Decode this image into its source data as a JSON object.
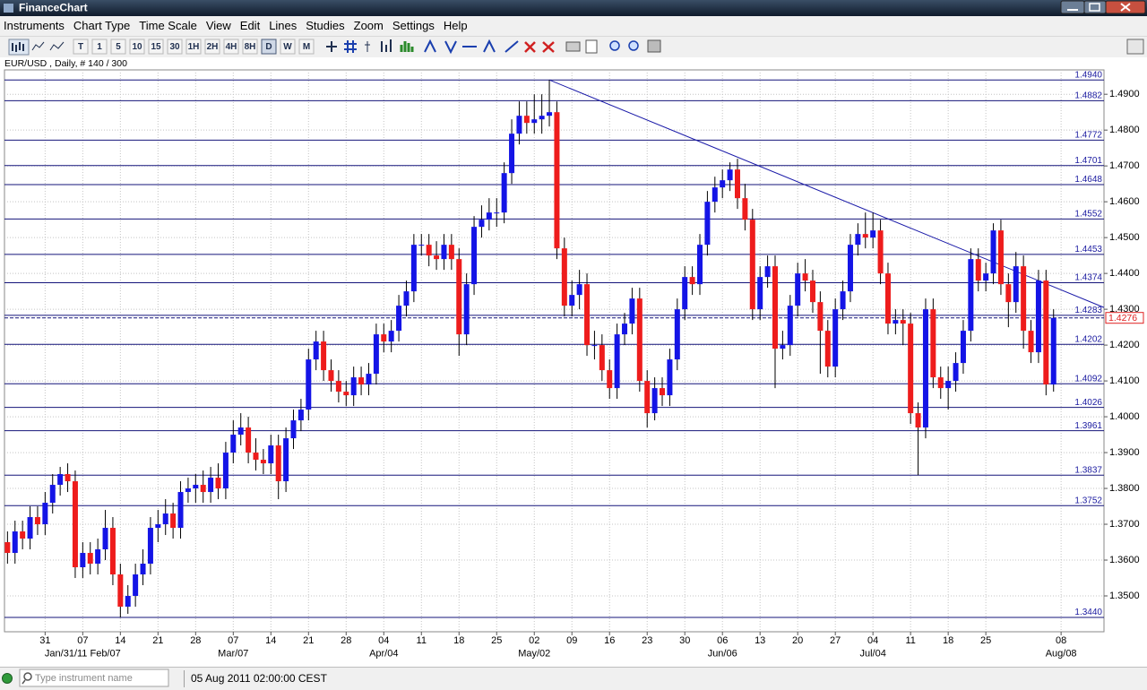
{
  "window": {
    "title": "FinanceChart"
  },
  "menu": [
    "Instruments",
    "Chart Type",
    "Time Scale",
    "View",
    "Edit",
    "Lines",
    "Studies",
    "Zoom",
    "Settings",
    "Help"
  ],
  "toolbar": [
    "T",
    "1",
    "5",
    "10",
    "15",
    "30",
    "1H",
    "2H",
    "4H",
    "8H",
    "D",
    "W",
    "M"
  ],
  "info": "EUR/USD , Daily, # 140 / 300",
  "status": {
    "search_placeholder": "Type instrument name",
    "datetime": "05 Aug 2011 02:00:00 CEST"
  },
  "chart_data": {
    "type": "candlestick",
    "up_color": "#1414e6",
    "down_color": "#ee1c1c",
    "open": [
      1.365,
      1.362,
      1.368,
      1.366,
      1.372,
      1.37,
      1.376,
      1.381,
      1.384,
      1.382,
      1.358,
      1.362,
      1.359,
      1.363,
      1.369,
      1.356,
      1.347,
      1.35,
      1.356,
      1.359,
      1.369,
      1.37,
      1.373,
      1.369,
      1.379,
      1.38,
      1.381,
      1.379,
      1.383,
      1.38,
      1.39,
      1.395,
      1.397,
      1.39,
      1.388,
      1.387,
      1.392,
      1.382,
      1.394,
      1.399,
      1.402,
      1.416,
      1.421,
      1.413,
      1.41,
      1.407,
      1.406,
      1.411,
      1.409,
      1.412,
      1.423,
      1.421,
      1.424,
      1.431,
      1.435,
      1.448,
      1.448,
      1.445,
      1.444,
      1.448,
      1.444,
      1.423,
      1.437,
      1.453,
      1.455,
      1.457,
      1.457,
      1.468,
      1.479,
      1.484,
      1.482,
      1.483,
      1.484,
      1.485,
      1.447,
      1.431,
      1.434,
      1.437,
      1.42,
      1.42,
      1.413,
      1.408,
      1.423,
      1.426,
      1.433,
      1.41,
      1.401,
      1.408,
      1.406,
      1.416,
      1.43,
      1.439,
      1.437,
      1.448,
      1.46,
      1.464,
      1.466,
      1.469,
      1.461,
      1.455,
      1.43,
      1.439,
      1.442,
      1.419,
      1.42,
      1.431,
      1.44,
      1.438,
      1.432,
      1.424,
      1.414,
      1.43,
      1.435,
      1.448,
      1.451,
      1.45,
      1.452,
      1.44,
      1.426,
      1.427,
      1.426,
      1.401,
      1.397,
      1.43,
      1.411,
      1.408,
      1.41,
      1.415,
      1.424,
      1.444,
      1.438,
      1.44,
      1.452,
      1.437,
      1.432,
      1.442,
      1.424,
      1.418,
      1.438,
      1.409
    ],
    "high": [
      1.368,
      1.371,
      1.371,
      1.375,
      1.375,
      1.379,
      1.384,
      1.386,
      1.387,
      1.385,
      1.365,
      1.365,
      1.366,
      1.374,
      1.372,
      1.359,
      1.353,
      1.359,
      1.363,
      1.372,
      1.374,
      1.377,
      1.376,
      1.382,
      1.383,
      1.384,
      1.385,
      1.386,
      1.387,
      1.393,
      1.399,
      1.401,
      1.4,
      1.394,
      1.391,
      1.395,
      1.395,
      1.397,
      1.402,
      1.405,
      1.419,
      1.424,
      1.424,
      1.416,
      1.413,
      1.41,
      1.414,
      1.414,
      1.415,
      1.426,
      1.426,
      1.427,
      1.434,
      1.438,
      1.451,
      1.451,
      1.451,
      1.449,
      1.451,
      1.451,
      1.447,
      1.44,
      1.456,
      1.459,
      1.461,
      1.461,
      1.471,
      1.483,
      1.488,
      1.488,
      1.49,
      1.49,
      1.494,
      1.488,
      1.45,
      1.438,
      1.441,
      1.44,
      1.424,
      1.423,
      1.416,
      1.426,
      1.429,
      1.436,
      1.436,
      1.413,
      1.411,
      1.411,
      1.419,
      1.433,
      1.442,
      1.442,
      1.451,
      1.463,
      1.467,
      1.469,
      1.471,
      1.472,
      1.465,
      1.458,
      1.442,
      1.445,
      1.445,
      1.424,
      1.434,
      1.443,
      1.444,
      1.441,
      1.435,
      1.427,
      1.433,
      1.438,
      1.451,
      1.454,
      1.457,
      1.457,
      1.455,
      1.443,
      1.43,
      1.43,
      1.429,
      1.404,
      1.433,
      1.433,
      1.414,
      1.414,
      1.418,
      1.427,
      1.447,
      1.447,
      1.443,
      1.454,
      1.455,
      1.44,
      1.446,
      1.445,
      1.427,
      1.441,
      1.441,
      1.43
    ],
    "low": [
      1.359,
      1.359,
      1.363,
      1.363,
      1.367,
      1.367,
      1.373,
      1.378,
      1.379,
      1.355,
      1.355,
      1.356,
      1.356,
      1.36,
      1.353,
      1.344,
      1.345,
      1.347,
      1.353,
      1.356,
      1.365,
      1.367,
      1.366,
      1.366,
      1.376,
      1.376,
      1.376,
      1.376,
      1.377,
      1.377,
      1.387,
      1.392,
      1.387,
      1.385,
      1.384,
      1.384,
      1.377,
      1.379,
      1.391,
      1.396,
      1.399,
      1.413,
      1.41,
      1.407,
      1.404,
      1.403,
      1.403,
      1.406,
      1.406,
      1.409,
      1.418,
      1.418,
      1.421,
      1.428,
      1.432,
      1.445,
      1.442,
      1.441,
      1.441,
      1.441,
      1.417,
      1.42,
      1.434,
      1.45,
      1.452,
      1.453,
      1.454,
      1.465,
      1.476,
      1.479,
      1.479,
      1.479,
      1.481,
      1.444,
      1.428,
      1.428,
      1.43,
      1.417,
      1.416,
      1.41,
      1.405,
      1.405,
      1.42,
      1.423,
      1.407,
      1.397,
      1.399,
      1.403,
      1.403,
      1.413,
      1.427,
      1.434,
      1.434,
      1.445,
      1.457,
      1.461,
      1.463,
      1.458,
      1.452,
      1.427,
      1.427,
      1.436,
      1.408,
      1.416,
      1.417,
      1.428,
      1.435,
      1.429,
      1.412,
      1.411,
      1.411,
      1.427,
      1.432,
      1.445,
      1.447,
      1.447,
      1.437,
      1.423,
      1.423,
      1.42,
      1.398,
      1.3837,
      1.394,
      1.408,
      1.405,
      1.402,
      1.407,
      1.412,
      1.421,
      1.435,
      1.435,
      1.437,
      1.434,
      1.425,
      1.429,
      1.419,
      1.415,
      1.415,
      1.406,
      1.407
    ],
    "close": [
      1.362,
      1.368,
      1.366,
      1.372,
      1.37,
      1.376,
      1.381,
      1.384,
      1.382,
      1.358,
      1.362,
      1.359,
      1.363,
      1.369,
      1.356,
      1.347,
      1.35,
      1.356,
      1.359,
      1.369,
      1.37,
      1.373,
      1.369,
      1.379,
      1.38,
      1.381,
      1.379,
      1.383,
      1.38,
      1.39,
      1.395,
      1.397,
      1.39,
      1.388,
      1.387,
      1.392,
      1.382,
      1.394,
      1.399,
      1.402,
      1.416,
      1.421,
      1.413,
      1.41,
      1.407,
      1.406,
      1.411,
      1.409,
      1.412,
      1.423,
      1.421,
      1.424,
      1.431,
      1.435,
      1.448,
      1.448,
      1.445,
      1.444,
      1.448,
      1.444,
      1.423,
      1.437,
      1.453,
      1.455,
      1.457,
      1.457,
      1.468,
      1.479,
      1.484,
      1.482,
      1.483,
      1.484,
      1.485,
      1.447,
      1.431,
      1.434,
      1.437,
      1.42,
      1.42,
      1.413,
      1.408,
      1.423,
      1.426,
      1.433,
      1.41,
      1.401,
      1.408,
      1.406,
      1.416,
      1.43,
      1.439,
      1.437,
      1.448,
      1.46,
      1.464,
      1.466,
      1.469,
      1.461,
      1.455,
      1.43,
      1.439,
      1.442,
      1.419,
      1.42,
      1.431,
      1.44,
      1.438,
      1.432,
      1.424,
      1.414,
      1.43,
      1.435,
      1.448,
      1.451,
      1.45,
      1.452,
      1.44,
      1.426,
      1.427,
      1.426,
      1.401,
      1.397,
      1.43,
      1.411,
      1.408,
      1.41,
      1.415,
      1.424,
      1.444,
      1.438,
      1.44,
      1.452,
      1.437,
      1.432,
      1.442,
      1.424,
      1.418,
      1.438,
      1.409,
      1.4276
    ],
    "xlim": [
      -0.4,
      145.7
    ],
    "xticks": [
      {
        "value": 5,
        "label": "31"
      },
      {
        "value": 10,
        "label": "07"
      },
      {
        "value": 15,
        "label": "14"
      },
      {
        "value": 20,
        "label": "21"
      },
      {
        "value": 25,
        "label": "28"
      },
      {
        "value": 30,
        "label": "07"
      },
      {
        "value": 35,
        "label": "14"
      },
      {
        "value": 40,
        "label": "21"
      },
      {
        "value": 45,
        "label": "28"
      },
      {
        "value": 50,
        "label": "04"
      },
      {
        "value": 55,
        "label": "11"
      },
      {
        "value": 60,
        "label": "18"
      },
      {
        "value": 65,
        "label": "25"
      },
      {
        "value": 70,
        "label": "02"
      },
      {
        "value": 75,
        "label": "09"
      },
      {
        "value": 80,
        "label": "16"
      },
      {
        "value": 85,
        "label": "23"
      },
      {
        "value": 90,
        "label": "30"
      },
      {
        "value": 95,
        "label": "06"
      },
      {
        "value": 100,
        "label": "13"
      },
      {
        "value": 105,
        "label": "20"
      },
      {
        "value": 110,
        "label": "27"
      },
      {
        "value": 115,
        "label": "04"
      },
      {
        "value": 120,
        "label": "11"
      },
      {
        "value": 125,
        "label": "18"
      },
      {
        "value": 130,
        "label": "25"
      },
      {
        "value": 140,
        "label": "08"
      }
    ],
    "month_labels": [
      {
        "value": 10,
        "label": "Jan/31/11 Feb/07"
      },
      {
        "value": 30,
        "label": "Mar/07"
      },
      {
        "value": 50,
        "label": "Apr/04"
      },
      {
        "value": 70,
        "label": "May/02"
      },
      {
        "value": 95,
        "label": "Jun/06"
      },
      {
        "value": 115,
        "label": "Jul/04"
      },
      {
        "value": 140,
        "label": "Aug/08"
      }
    ],
    "ylim": [
      1.34,
      1.4968
    ],
    "yticks": [
      {
        "value": 1.35,
        "label": "1.3500"
      },
      {
        "value": 1.36,
        "label": "1.3600"
      },
      {
        "value": 1.37,
        "label": "1.3700"
      },
      {
        "value": 1.38,
        "label": "1.3800"
      },
      {
        "value": 1.39,
        "label": "1.3900"
      },
      {
        "value": 1.4,
        "label": "1.4000"
      },
      {
        "value": 1.41,
        "label": "1.4100"
      },
      {
        "value": 1.42,
        "label": "1.4200"
      },
      {
        "value": 1.43,
        "label": "1.4300"
      },
      {
        "value": 1.44,
        "label": "1.4400"
      },
      {
        "value": 1.45,
        "label": "1.4500"
      },
      {
        "value": 1.46,
        "label": "1.4600"
      },
      {
        "value": 1.47,
        "label": "1.4700"
      },
      {
        "value": 1.48,
        "label": "1.4800"
      },
      {
        "value": 1.49,
        "label": "1.4900"
      }
    ],
    "levels": [
      {
        "value": 1.494,
        "label": "1.4940"
      },
      1.4882,
      1.4772,
      1.4701,
      1.4648,
      1.4552,
      1.4453,
      1.4374,
      1.4283,
      1.4202,
      1.4092,
      1.4026,
      1.3961,
      1.3837,
      1.3752,
      {
        "value": 1.344,
        "label": "1.3440"
      }
    ],
    "last_price": 1.4276,
    "trendline": {
      "x": [
        72,
        145.7
      ],
      "y": [
        1.494,
        1.4305
      ]
    },
    "grid": true
  }
}
